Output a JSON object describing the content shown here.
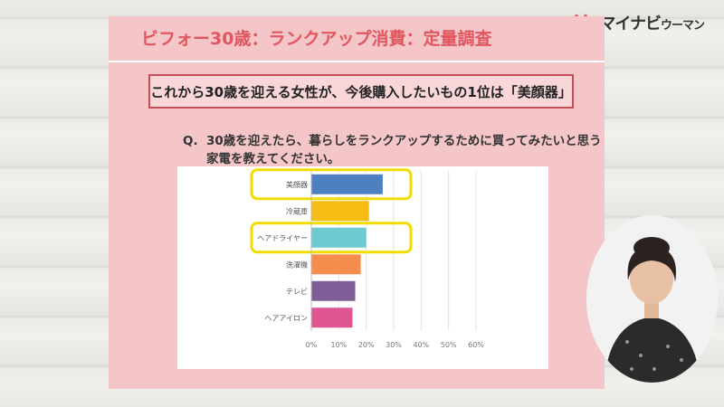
{
  "brand": {
    "logo_text_main": "マイナビ",
    "logo_text_sub": "ウーマン",
    "logo_color": "#e0575f"
  },
  "slide": {
    "title": "ビフォー30歳：ランクアップ消費：定量調査",
    "headline": "これから30歳を迎える女性が、今後購入したいもの1位は「美顔器」",
    "question_mark": "Q.",
    "question_line1": "30歳を迎えたら、暮らしをランクアップするために買ってみたいと思う",
    "question_line2": "家電を教えてください。"
  },
  "chart_data": {
    "type": "bar",
    "orientation": "horizontal",
    "categories": [
      "美顔器",
      "冷蔵庫",
      "ヘアドライヤー",
      "洗濯機",
      "テレビ",
      "ヘアアイロン"
    ],
    "values": [
      26,
      21,
      20,
      18,
      16,
      15
    ],
    "colors": [
      "#4e7fc1",
      "#f6bc14",
      "#6ccad0",
      "#f78d4c",
      "#7f5d99",
      "#df5593"
    ],
    "highlighted": [
      "美顔器",
      "ヘアドライヤー"
    ],
    "highlight_color": "#f2dc00",
    "xlim": [
      0,
      60
    ],
    "xticks": [
      "0%",
      "10%",
      "20%",
      "30%",
      "40%",
      "50%",
      "60%"
    ],
    "grid": true
  }
}
